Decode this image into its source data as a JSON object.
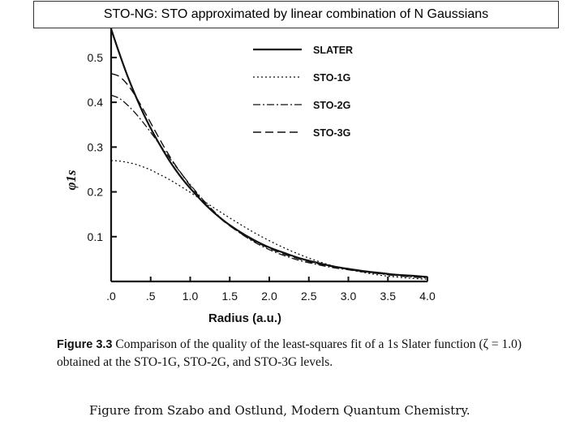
{
  "slide": {
    "title": "STO-NG: STO approximated by linear combination of N Gaussians"
  },
  "caption": {
    "figure_label": "Figure 3.3",
    "text": "Comparison of the quality of the least-squares fit of a 1s Slater function (ζ = 1.0) obtained at the STO-1G, STO-2G, and STO-3G levels."
  },
  "source_note": "Figure from Szabo and Ostlund, Modern Quantum Chemistry.",
  "chart_data": {
    "type": "line",
    "title": "",
    "xlabel": "Radius (a.u.)",
    "ylabel": "φ1s",
    "xlim": [
      0,
      4.0
    ],
    "ylim": [
      0,
      0.565
    ],
    "xticks": [
      ".0",
      ".5",
      "1.0",
      "1.5",
      "2.0",
      "2.5",
      "3.0",
      "3.5",
      "4.0"
    ],
    "xtick_values": [
      0,
      0.5,
      1.0,
      1.5,
      2.0,
      2.5,
      3.0,
      3.5,
      4.0
    ],
    "yticks": [
      "0.1",
      "0.2",
      "0.3",
      "0.4",
      "0.5"
    ],
    "ytick_values": [
      0.1,
      0.2,
      0.3,
      0.4,
      0.5
    ],
    "grid": false,
    "legend_position": "top-right",
    "x": [
      0,
      0.1,
      0.2,
      0.3,
      0.4,
      0.5,
      0.6,
      0.7,
      0.8,
      0.9,
      1.0,
      1.2,
      1.4,
      1.6,
      1.8,
      2.0,
      2.2,
      2.4,
      2.6,
      2.8,
      3.0,
      3.2,
      3.4,
      3.6,
      3.8,
      4.0
    ],
    "series": [
      {
        "name": "SLATER",
        "dash": "solid",
        "values": [
          0.564,
          0.511,
          0.462,
          0.418,
          0.378,
          0.342,
          0.31,
          0.28,
          0.253,
          0.229,
          0.208,
          0.17,
          0.139,
          0.114,
          0.093,
          0.076,
          0.063,
          0.051,
          0.042,
          0.034,
          0.028,
          0.023,
          0.019,
          0.015,
          0.013,
          0.01
        ]
      },
      {
        "name": "STO-1G",
        "dash": "dotted",
        "values": [
          0.27,
          0.269,
          0.266,
          0.262,
          0.256,
          0.249,
          0.24,
          0.231,
          0.221,
          0.21,
          0.199,
          0.176,
          0.153,
          0.131,
          0.11,
          0.091,
          0.074,
          0.059,
          0.046,
          0.035,
          0.027,
          0.02,
          0.014,
          0.01,
          0.007,
          0.005
        ]
      },
      {
        "name": "STO-2G",
        "dash": "dash-dot",
        "values": [
          0.416,
          0.409,
          0.395,
          0.377,
          0.356,
          0.333,
          0.309,
          0.285,
          0.261,
          0.238,
          0.216,
          0.175,
          0.14,
          0.112,
          0.089,
          0.071,
          0.057,
          0.046,
          0.038,
          0.031,
          0.026,
          0.021,
          0.017,
          0.013,
          0.01,
          0.008
        ]
      },
      {
        "name": "STO-3G",
        "dash": "dashed",
        "values": [
          0.464,
          0.458,
          0.441,
          0.416,
          0.386,
          0.354,
          0.322,
          0.291,
          0.263,
          0.238,
          0.214,
          0.172,
          0.138,
          0.112,
          0.091,
          0.074,
          0.06,
          0.049,
          0.04,
          0.033,
          0.027,
          0.022,
          0.018,
          0.014,
          0.011,
          0.009
        ]
      }
    ]
  }
}
